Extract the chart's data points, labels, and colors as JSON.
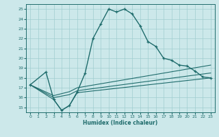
{
  "xlabel": "Humidex (Indice chaleur)",
  "background_color": "#cce8ea",
  "grid_color": "#a0cdd0",
  "line_color": "#1e6b6b",
  "xlim": [
    -0.5,
    23.5
  ],
  "ylim": [
    14.5,
    25.5
  ],
  "xticks": [
    0,
    1,
    2,
    3,
    4,
    5,
    6,
    7,
    8,
    9,
    10,
    11,
    12,
    13,
    14,
    15,
    16,
    17,
    18,
    19,
    20,
    21,
    22,
    23
  ],
  "yticks": [
    15,
    16,
    17,
    18,
    19,
    20,
    21,
    22,
    23,
    24,
    25
  ],
  "curve1_x": [
    0,
    2,
    3,
    4,
    5,
    6,
    7,
    8,
    9,
    10,
    11,
    12,
    13,
    14,
    15,
    16,
    17,
    18,
    19,
    20,
    21,
    22,
    23
  ],
  "curve1_y": [
    17.3,
    18.6,
    15.8,
    14.7,
    15.2,
    16.6,
    18.5,
    22.0,
    23.5,
    25.0,
    24.7,
    25.0,
    24.5,
    23.3,
    21.7,
    21.2,
    20.0,
    19.8,
    19.3,
    19.2,
    18.7,
    18.1,
    18.0
  ],
  "curve2_x": [
    0,
    3,
    4,
    5,
    6,
    23
  ],
  "curve2_y": [
    17.3,
    15.8,
    14.7,
    15.2,
    16.5,
    18.0
  ],
  "curve3_x": [
    0,
    3,
    5,
    6,
    23
  ],
  "curve3_y": [
    17.3,
    16.0,
    16.3,
    16.7,
    18.5
  ],
  "curve4_x": [
    0,
    3,
    5,
    6,
    23
  ],
  "curve4_y": [
    17.3,
    16.2,
    16.6,
    17.0,
    19.3
  ]
}
